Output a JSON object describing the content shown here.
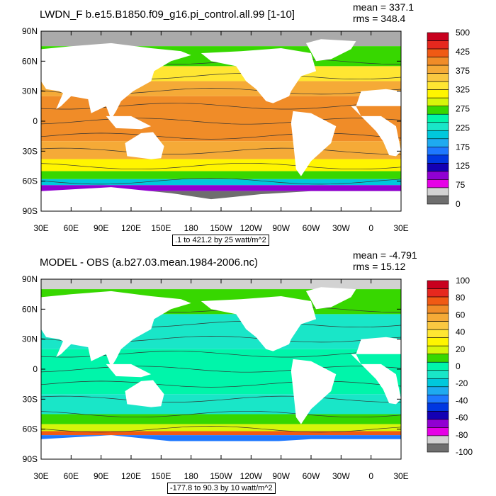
{
  "chart_data": [
    {
      "type": "heatmap",
      "title": "LWDN_F b.e15.B1850.f09_g16.pi_control.all.99 [1-10]",
      "mean_label": "mean = 337.1",
      "rms_label": "rms = 348.4",
      "range_label": ".1 to 421.2 by 25 watt/m^2",
      "y_ticks": [
        "90N",
        "60N",
        "30N",
        "0",
        "30S",
        "60S",
        "90S"
      ],
      "x_ticks": [
        "30E",
        "60E",
        "90E",
        "120E",
        "150E",
        "180",
        "150W",
        "120W",
        "90W",
        "60W",
        "30W",
        "0",
        "30E"
      ],
      "colorbar_labels": [
        "500",
        "425",
        "375",
        "325",
        "275",
        "225",
        "175",
        "125",
        "75",
        "0"
      ],
      "colorbar_colors": [
        "#c8001e",
        "#e6281e",
        "#f05a14",
        "#f08c28",
        "#f5aa37",
        "#fac841",
        "#ffe632",
        "#fff500",
        "#d7f50a",
        "#37d700",
        "#00f5aa",
        "#19e6c8",
        "#00c8dc",
        "#1eaaf0",
        "#1e78ff",
        "#0037e1",
        "#1400b4",
        "#9100d2",
        "#e600e6",
        "#d2d2d2",
        "#6e6e6e"
      ],
      "latitude_zones": [
        {
          "lat_from": 90,
          "lat_to": 75,
          "color": "#aaaaaa"
        },
        {
          "lat_from": 75,
          "lat_to": 55,
          "color": "#37d700"
        },
        {
          "lat_from": 55,
          "lat_to": 40,
          "color": "#ffe632"
        },
        {
          "lat_from": 40,
          "lat_to": 25,
          "color": "#f5aa37"
        },
        {
          "lat_from": 25,
          "lat_to": -20,
          "color": "#f08c28"
        },
        {
          "lat_from": -20,
          "lat_to": -38,
          "color": "#f5aa37"
        },
        {
          "lat_from": -38,
          "lat_to": -50,
          "color": "#fff500"
        },
        {
          "lat_from": -50,
          "lat_to": -58,
          "color": "#37d700"
        },
        {
          "lat_from": -58,
          "lat_to": -64,
          "color": "#00c8dc"
        },
        {
          "lat_from": -64,
          "lat_to": -70,
          "color": "#9100d2"
        },
        {
          "lat_from": -70,
          "lat_to": -90,
          "color": "#6e6e6e"
        }
      ]
    },
    {
      "type": "heatmap",
      "title": "MODEL - OBS (a.b27.03.mean.1984-2006.nc)",
      "mean_label": "mean = -4.791",
      "rms_label": "rms = 15.12",
      "range_label": "-177.8 to 90.3 by 10 watt/m^2",
      "y_ticks": [
        "90N",
        "60N",
        "30N",
        "0",
        "30S",
        "60S",
        "90S"
      ],
      "x_ticks": [
        "30E",
        "60E",
        "90E",
        "120E",
        "150E",
        "180",
        "150W",
        "120W",
        "90W",
        "60W",
        "30W",
        "0",
        "30E"
      ],
      "colorbar_labels": [
        "100",
        "80",
        "60",
        "40",
        "20",
        "0",
        "-20",
        "-40",
        "-60",
        "-80",
        "-100"
      ],
      "colorbar_colors": [
        "#c8001e",
        "#e6281e",
        "#f05a14",
        "#f08c28",
        "#f5aa37",
        "#fac841",
        "#ffe632",
        "#fff500",
        "#d7f50a",
        "#37d700",
        "#00f5aa",
        "#19e6c8",
        "#00c8dc",
        "#1eaaf0",
        "#1e78ff",
        "#0037e1",
        "#1400b4",
        "#9100d2",
        "#e600e6",
        "#d2d2d2",
        "#6e6e6e"
      ],
      "latitude_zones": [
        {
          "lat_from": 90,
          "lat_to": 80,
          "color": "#d2d2d2"
        },
        {
          "lat_from": 80,
          "lat_to": 55,
          "color": "#37d700"
        },
        {
          "lat_from": 55,
          "lat_to": 20,
          "color": "#19e6c8"
        },
        {
          "lat_from": 20,
          "lat_to": -25,
          "color": "#00f5aa"
        },
        {
          "lat_from": -25,
          "lat_to": -45,
          "color": "#19e6c8"
        },
        {
          "lat_from": -45,
          "lat_to": -55,
          "color": "#37d700"
        },
        {
          "lat_from": -55,
          "lat_to": -62,
          "color": "#d7f50a"
        },
        {
          "lat_from": -62,
          "lat_to": -66,
          "color": "#f05a14"
        },
        {
          "lat_from": -66,
          "lat_to": -72,
          "color": "#1e78ff"
        },
        {
          "lat_from": -72,
          "lat_to": -90,
          "color": "#ffffff"
        }
      ]
    }
  ]
}
